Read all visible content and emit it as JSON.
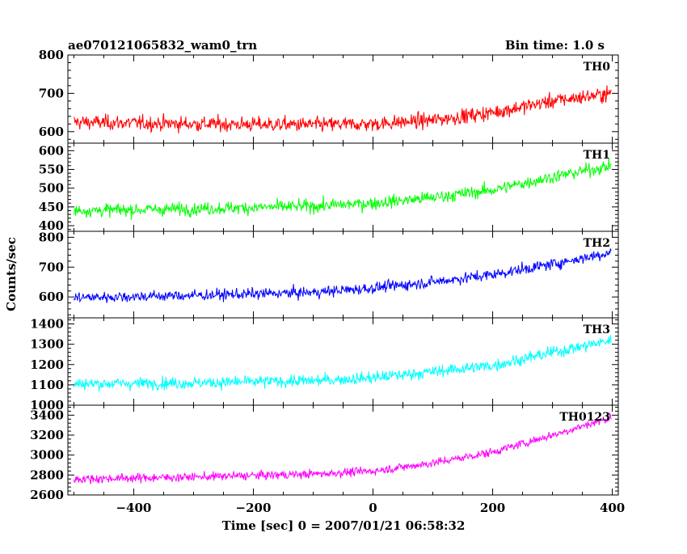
{
  "header": {
    "left_title": "ae070121065832_wam0_trn",
    "right_title": "Bin time: 1.0 s"
  },
  "axes": {
    "xlabel": "Time [sec] 0 = 2007/01/21 06:58:32",
    "ylabel": "Counts/sec"
  },
  "chart_data": {
    "type": "line",
    "subtype": "stacked-light-curves",
    "title": "ae070121065832_wam0_trn",
    "subtitle": "Bin time: 1.0 s",
    "xlabel": "Time [sec] 0 = 2007/01/21 06:58:32",
    "ylabel": "Counts/sec",
    "bin_time_s": 1.0,
    "xlim": [
      -510,
      410
    ],
    "x_ticks": [
      -400,
      -200,
      0,
      200,
      400
    ],
    "x_tick_labels": [
      "−400",
      "−200",
      "0",
      "200",
      "400"
    ],
    "grid": false,
    "panels": [
      {
        "name": "TH0",
        "color": "#ff0000",
        "ylim": [
          570,
          800
        ],
        "y_ticks": [
          600,
          700,
          800
        ],
        "trend_x": [
          -500,
          -300,
          -100,
          0,
          100,
          200,
          300,
          400
        ],
        "trend_y": [
          625,
          620,
          618,
          620,
          630,
          650,
          680,
          700
        ],
        "noise_amplitude": 25
      },
      {
        "name": "TH1",
        "color": "#00ff00",
        "ylim": [
          385,
          620
        ],
        "y_ticks": [
          400,
          450,
          500,
          550,
          600
        ],
        "trend_x": [
          -500,
          -300,
          -100,
          0,
          100,
          200,
          300,
          400
        ],
        "trend_y": [
          440,
          445,
          452,
          460,
          475,
          495,
          530,
          560
        ],
        "noise_amplitude": 22
      },
      {
        "name": "TH2",
        "color": "#0000ff",
        "ylim": [
          530,
          820
        ],
        "y_ticks": [
          600,
          700,
          800
        ],
        "trend_x": [
          -500,
          -300,
          -100,
          0,
          100,
          200,
          300,
          400
        ],
        "trend_y": [
          598,
          605,
          615,
          630,
          650,
          675,
          710,
          750
        ],
        "noise_amplitude": 24
      },
      {
        "name": "TH3",
        "color": "#00ffff",
        "ylim": [
          1000,
          1430
        ],
        "y_ticks": [
          1000,
          1100,
          1200,
          1300,
          1400
        ],
        "trend_x": [
          -500,
          -300,
          -100,
          0,
          100,
          200,
          300,
          400
        ],
        "trend_y": [
          1105,
          1110,
          1120,
          1135,
          1165,
          1195,
          1260,
          1320
        ],
        "noise_amplitude": 38
      },
      {
        "name": "TH0123",
        "color": "#ff00ff",
        "ylim": [
          2600,
          3500
        ],
        "y_ticks": [
          2600,
          2800,
          3000,
          3200,
          3400
        ],
        "trend_x": [
          -500,
          -300,
          -100,
          0,
          100,
          200,
          300,
          400
        ],
        "trend_y": [
          2760,
          2780,
          2810,
          2840,
          2920,
          3030,
          3200,
          3380
        ],
        "noise_amplitude": 55
      }
    ]
  }
}
